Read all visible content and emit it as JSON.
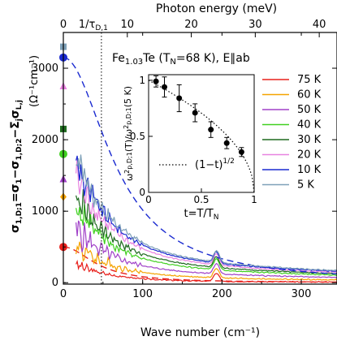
{
  "chart_data": {
    "type": "line",
    "sample_label": "Fe",
    "sample_sub": "1.03",
    "sample_rest": "Te (T",
    "sample_tn_sub": "N",
    "sample_tn": "=68 K),  E∥ab",
    "xlabel": "Wave number (cm⁻¹)",
    "top_xlabel": "Photon energy (meV)",
    "tau_label": "1/τ",
    "tau_sub": "D,1",
    "ylabel_main": "σ",
    "ylabel_text": "σ_1,D;1 = σ_1 − σ_1,D;2 − Σ_j σ_L,j",
    "ylabel_unit": "(Ω⁻¹cm⁻¹)",
    "xlim": [
      0,
      345
    ],
    "ylim": [
      -20,
      3500
    ],
    "x_ticks": [
      0,
      100,
      200,
      300
    ],
    "y_ticks": [
      0,
      1000,
      2000,
      3000
    ],
    "top_ticks": [
      0,
      10,
      20,
      30,
      40
    ],
    "top_tick_cm_per_mev": 8.0655,
    "tau_position_cm": 48,
    "series": [
      {
        "name": "75 K",
        "color": "#e8201c",
        "dc": 500,
        "base": 230,
        "tail": 20,
        "peak": 110,
        "noise": 60
      },
      {
        "name": "60 K",
        "color": "#f5a300",
        "dc": 1200,
        "base": 420,
        "tail": 80,
        "peak": 130,
        "noise": 180
      },
      {
        "name": "50 K",
        "color": "#a040c8",
        "dc": 1450,
        "base": 560,
        "tail": 150,
        "peak": 140,
        "noise": 200
      },
      {
        "name": "40 K",
        "color": "#40d020",
        "dc": 1800,
        "base": 780,
        "tail": 220,
        "peak": 150,
        "noise": 220
      },
      {
        "name": "30 K",
        "color": "#1f6a1f",
        "dc": 2150,
        "base": 900,
        "tail": 260,
        "peak": 150,
        "noise": 220
      },
      {
        "name": "20 K",
        "color": "#e882e0",
        "dc": 2750,
        "base": 1100,
        "tail": 300,
        "peak": 155,
        "noise": 220
      },
      {
        "name": "10 K",
        "color": "#1a2ad0",
        "dc": 3150,
        "base": 1250,
        "tail": 330,
        "peak": 160,
        "noise": 230
      },
      {
        "name": "5 K",
        "color": "#7ea0b8",
        "dc": 3300,
        "base": 1300,
        "tail": 350,
        "peak": 160,
        "noise": 230
      }
    ],
    "inset": {
      "xlabel": "t=T/T",
      "xlabel_sub": "N",
      "ylabel": "ω²p,D;1(T) / ω²p,D;1(5 K)",
      "xlim": [
        0,
        1
      ],
      "ylim": [
        0,
        1.05
      ],
      "ticks": [
        0,
        0.5,
        1
      ],
      "tick_labels": [
        "0",
        "0.5",
        "1"
      ],
      "fit_label": "(1−t)",
      "fit_exp": "1/2",
      "points": [
        {
          "t": 0.07,
          "v": 0.99,
          "err": 0.05
        },
        {
          "t": 0.15,
          "v": 0.94,
          "err": 0.09
        },
        {
          "t": 0.29,
          "v": 0.84,
          "err": 0.12
        },
        {
          "t": 0.44,
          "v": 0.71,
          "err": 0.08
        },
        {
          "t": 0.59,
          "v": 0.56,
          "err": 0.07
        },
        {
          "t": 0.74,
          "v": 0.44,
          "err": 0.05
        },
        {
          "t": 0.88,
          "v": 0.36,
          "err": 0.04
        }
      ]
    }
  }
}
